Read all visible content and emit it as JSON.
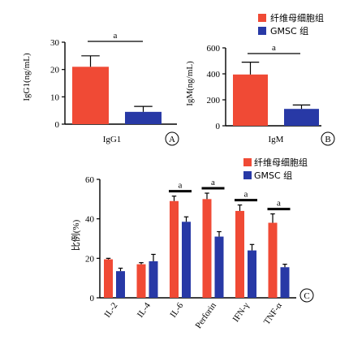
{
  "colors": {
    "fibroblast": "#f04a35",
    "gmsc": "#2839a6"
  },
  "legend_top": [
    "纤维母细胞组",
    "GMSC 组"
  ],
  "legend_c": [
    "纤维母细胞组",
    "GMSC 组"
  ],
  "chart_data": [
    {
      "id": "A",
      "type": "bar",
      "panel_label": "A",
      "ylabel": "IgG1(ng/mL)",
      "xlabel": "IgG1",
      "ylim": [
        0,
        30
      ],
      "yticks": [
        0,
        10,
        20,
        30
      ],
      "series": [
        {
          "name": "纤维母细胞组",
          "values": [
            21
          ],
          "errors": [
            4
          ]
        },
        {
          "name": "GMSC 组",
          "values": [
            4.5
          ],
          "errors": [
            2
          ]
        }
      ],
      "significance": [
        {
          "label": "a"
        }
      ]
    },
    {
      "id": "B",
      "type": "bar",
      "panel_label": "B",
      "ylabel": "IgM(ng/mL)",
      "xlabel": "IgM",
      "ylim": [
        0,
        600
      ],
      "yticks": [
        0,
        200,
        400,
        600
      ],
      "series": [
        {
          "name": "纤维母细胞组",
          "values": [
            395
          ],
          "errors": [
            95
          ]
        },
        {
          "name": "GMSC 组",
          "values": [
            130
          ],
          "errors": [
            30
          ]
        }
      ],
      "significance": [
        {
          "label": "a"
        }
      ]
    },
    {
      "id": "C",
      "type": "bar",
      "panel_label": "C",
      "ylabel": "比例(%)",
      "ylim": [
        0,
        60
      ],
      "yticks": [
        0,
        20,
        40,
        60
      ],
      "categories": [
        "IL-2",
        "IL-4",
        "IL-6",
        "Perforin",
        "IFN-γ",
        "TNF-α"
      ],
      "series": [
        {
          "name": "纤维母细胞组",
          "values": [
            19.5,
            17,
            49,
            50,
            44,
            38
          ],
          "errors": [
            0.5,
            0.8,
            2.5,
            3,
            3,
            4.5
          ]
        },
        {
          "name": "GMSC 组",
          "values": [
            13.5,
            18.5,
            38.5,
            31,
            24,
            15.5
          ],
          "errors": [
            1.5,
            3.5,
            2.5,
            2.5,
            3,
            1.5
          ]
        }
      ],
      "significance": [
        {
          "category": "IL-6",
          "label": "a"
        },
        {
          "category": "Perforin",
          "label": "a"
        },
        {
          "category": "IFN-γ",
          "label": "a"
        },
        {
          "category": "TNF-α",
          "label": "a"
        }
      ]
    }
  ]
}
